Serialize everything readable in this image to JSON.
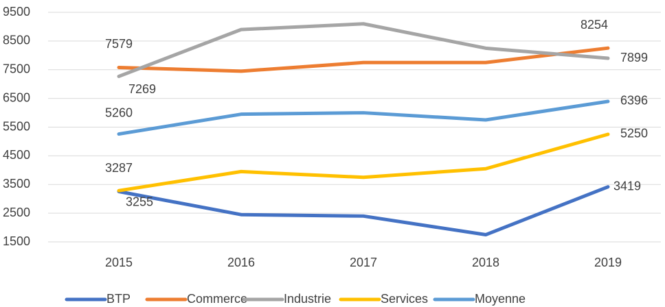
{
  "chart_data": {
    "type": "line",
    "categories": [
      "2015",
      "2016",
      "2017",
      "2018",
      "2019"
    ],
    "series": [
      {
        "name": "BTP",
        "color": "#4472c4",
        "values": [
          3255,
          2450,
          2400,
          1750,
          3419
        ]
      },
      {
        "name": "Commerce",
        "color": "#ed7d31",
        "values": [
          7579,
          7450,
          7750,
          7750,
          8254
        ]
      },
      {
        "name": "Industrie",
        "color": "#a5a5a5",
        "values": [
          7269,
          8900,
          9100,
          8250,
          7899
        ]
      },
      {
        "name": "Services",
        "color": "#ffc000",
        "values": [
          3287,
          3950,
          3750,
          4050,
          5250
        ]
      },
      {
        "name": "Moyenne",
        "color": "#5b9bd5",
        "values": [
          5260,
          5950,
          6000,
          5750,
          6396
        ]
      }
    ],
    "ylim": [
      1500,
      9500
    ],
    "yticks": [
      1500,
      2500,
      3500,
      4500,
      5500,
      6500,
      7500,
      8500,
      9500
    ],
    "grid": true,
    "legend": "bottom"
  }
}
